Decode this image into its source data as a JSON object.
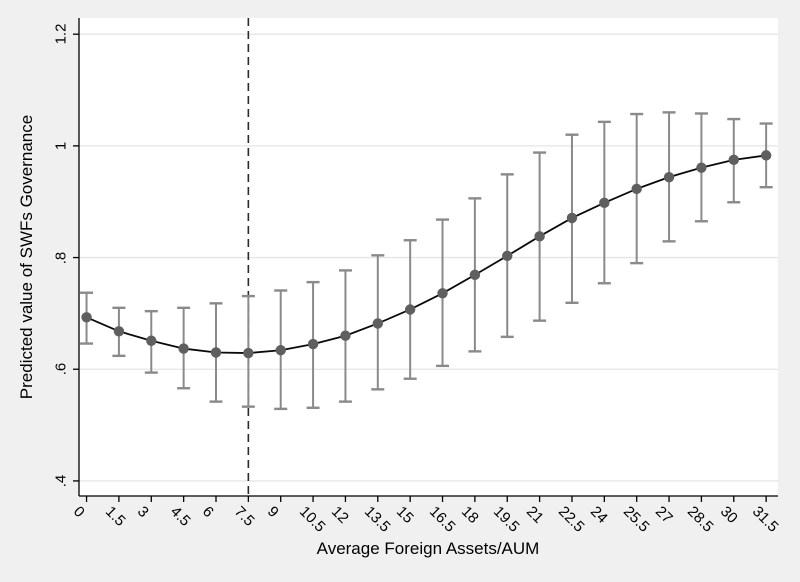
{
  "figure": {
    "background_color": "#f0f0f0",
    "plot_background": "#ffffff"
  },
  "chart_data": {
    "type": "line",
    "title": "",
    "xlabel": "Average Foreign Assets/AUM",
    "ylabel": "Predicted value of SWFs Governance",
    "x": [
      0,
      1.5,
      3,
      4.5,
      6,
      7.5,
      9,
      10.5,
      12,
      13.5,
      15,
      16.5,
      18,
      19.5,
      21,
      22.5,
      24,
      25.5,
      27,
      28.5,
      30,
      31.5
    ],
    "series": [
      {
        "name": "Predicted value of SWFs Governance",
        "values": [
          0.693,
          0.668,
          0.651,
          0.637,
          0.63,
          0.629,
          0.634,
          0.645,
          0.66,
          0.682,
          0.707,
          0.736,
          0.769,
          0.803,
          0.838,
          0.871,
          0.898,
          0.923,
          0.944,
          0.961,
          0.975,
          0.983
        ],
        "ci_low": [
          0.646,
          0.624,
          0.594,
          0.566,
          0.542,
          0.533,
          0.529,
          0.531,
          0.542,
          0.564,
          0.583,
          0.606,
          0.632,
          0.658,
          0.687,
          0.719,
          0.754,
          0.79,
          0.829,
          0.865,
          0.899,
          0.926
        ],
        "ci_high": [
          0.737,
          0.71,
          0.704,
          0.71,
          0.718,
          0.731,
          0.741,
          0.756,
          0.777,
          0.804,
          0.831,
          0.868,
          0.906,
          0.949,
          0.988,
          1.02,
          1.043,
          1.057,
          1.06,
          1.058,
          1.048,
          1.04
        ]
      }
    ],
    "reference_line_x": 7.5,
    "xtick_labels": [
      "0",
      "1.5",
      "3",
      "4.5",
      "6",
      "7.5",
      "9",
      "10.5",
      "12",
      "13.5",
      "15",
      "16.5",
      "18",
      "19.5",
      "21",
      "22.5",
      "24",
      "25.5",
      "27",
      "28.5",
      "30",
      "31.5"
    ],
    "yticks": [
      0.4,
      0.6,
      0.8,
      1,
      1.2
    ],
    "ytick_labels": [
      ".4",
      ".6",
      ".8",
      "1",
      "1.2"
    ],
    "xlim": [
      -0.35,
      32.05
    ],
    "ylim": [
      0.373,
      1.229
    ],
    "grid": "horizontal",
    "legend": "none",
    "styles": {
      "marker_color": "#5f5f5f",
      "error_bar_color": "#8a8a8a",
      "line_color": "#0a0a0a",
      "grid_color": "#e6e6e6",
      "axis_color": "#000000",
      "reference_line_color": "#2b2b2b",
      "text_color": "#000000"
    }
  }
}
